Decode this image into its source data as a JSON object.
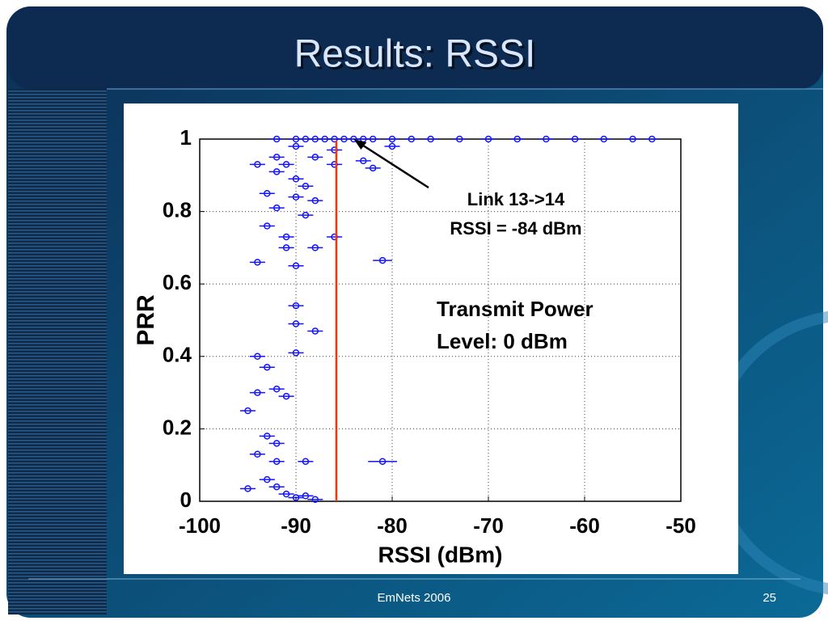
{
  "slide": {
    "title": "Results: RSSI",
    "footer": "EmNets 2006",
    "page": "25"
  },
  "chart_data": {
    "type": "scatter",
    "xlabel": "RSSI (dBm)",
    "ylabel": "PRR",
    "xlim": [
      -100,
      -50
    ],
    "xticks": [
      -100,
      -90,
      -80,
      -70,
      -60,
      -50
    ],
    "ylim": [
      0,
      1
    ],
    "yticks": [
      0,
      0.2,
      0.4,
      0.6,
      0.8,
      1
    ],
    "grid": true,
    "color": "#1414ff",
    "x": [
      -92,
      -90,
      -89,
      -88,
      -87,
      -86,
      -85,
      -84,
      -83,
      -82,
      -80,
      -78,
      -76,
      -73,
      -70,
      -67,
      -64,
      -61,
      -58,
      -55,
      -53,
      -90,
      -86,
      -80,
      -92,
      -88,
      -83,
      -94,
      -91,
      -86,
      -82,
      -92,
      -90,
      -89,
      -93,
      -90,
      -88,
      -92,
      -89,
      -93,
      -91,
      -86,
      -91,
      -88,
      -94,
      -90,
      -81,
      -90,
      -90,
      -88,
      -90,
      -94,
      -93,
      -92,
      -94,
      -91,
      -95,
      -93,
      -92,
      -94,
      -92,
      -89,
      -81,
      -93,
      -92,
      -95,
      -91,
      -89,
      -88,
      -90
    ],
    "y": [
      1,
      1,
      1,
      1,
      1,
      1,
      1,
      1,
      1,
      1,
      1,
      1,
      1,
      1,
      1,
      1,
      1,
      1,
      1,
      1,
      1,
      0.98,
      0.97,
      0.98,
      0.95,
      0.95,
      0.94,
      0.93,
      0.93,
      0.93,
      0.92,
      0.91,
      0.89,
      0.87,
      0.85,
      0.84,
      0.83,
      0.81,
      0.79,
      0.76,
      0.73,
      0.73,
      0.7,
      0.7,
      0.66,
      0.65,
      0.665,
      0.54,
      0.49,
      0.47,
      0.41,
      0.4,
      0.37,
      0.31,
      0.3,
      0.29,
      0.25,
      0.18,
      0.16,
      0.13,
      0.11,
      0.11,
      0.11,
      0.06,
      0.04,
      0.035,
      0.02,
      0.015,
      0.005,
      0.01
    ],
    "xerr": [
      0.8,
      0.8,
      0.8,
      0.8,
      0.8,
      0.8,
      0.8,
      0.8,
      0.8,
      0.8,
      0.8,
      0.8,
      0.8,
      0.8,
      0.8,
      0.8,
      0.8,
      0.8,
      0.8,
      0.8,
      0.8,
      0.8,
      0.8,
      0.8,
      0.8,
      0.8,
      0.8,
      0.8,
      0.8,
      0.8,
      0.8,
      0.8,
      0.8,
      0.8,
      0.8,
      0.8,
      0.8,
      0.8,
      0.8,
      0.8,
      0.8,
      0.8,
      0.8,
      0.8,
      0.8,
      0.8,
      1.0,
      0.8,
      0.8,
      0.8,
      0.8,
      0.8,
      0.8,
      0.8,
      0.8,
      0.8,
      0.8,
      0.8,
      0.8,
      0.8,
      0.8,
      0.8,
      1.5,
      0.8,
      0.8,
      0.8,
      0.8,
      0.8,
      0.8,
      0.8
    ],
    "threshold_line": {
      "x": -85.8,
      "color": "#ff3300"
    },
    "arrow_target": {
      "x": -84,
      "y": 1
    },
    "annotations": [
      "Link 13->14",
      "RSSI = -84 dBm",
      "Transmit Power",
      "Level: 0 dBm"
    ]
  }
}
